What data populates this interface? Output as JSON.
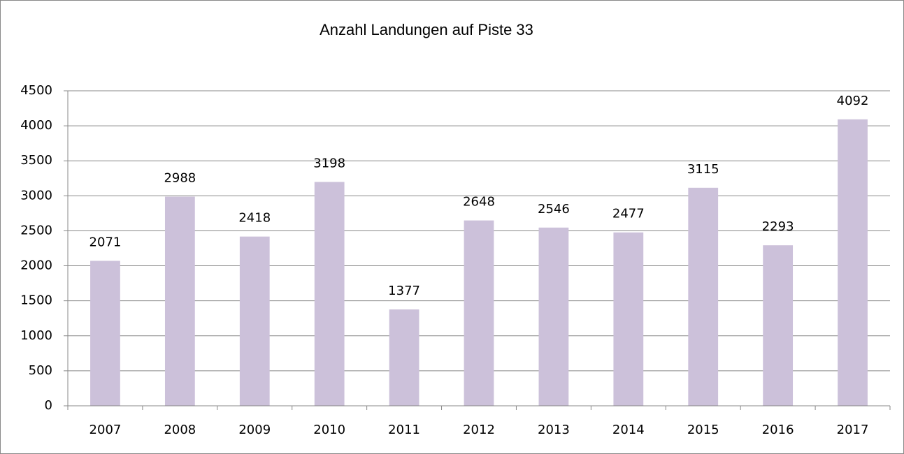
{
  "chart_data": {
    "type": "bar",
    "title": "Anzahl Landungen auf Piste 33",
    "categories": [
      "2007",
      "2008",
      "2009",
      "2010",
      "2011",
      "2012",
      "2013",
      "2014",
      "2015",
      "2016",
      "2017"
    ],
    "values": [
      2071,
      2988,
      2418,
      3198,
      1377,
      2648,
      2546,
      2477,
      3115,
      2293,
      4092
    ],
    "color": "#ccc1da",
    "ylim": [
      0,
      4500
    ],
    "yticks": [
      0,
      500,
      1000,
      1500,
      2000,
      2500,
      3000,
      3500,
      4000,
      4500
    ],
    "grid": true
  }
}
